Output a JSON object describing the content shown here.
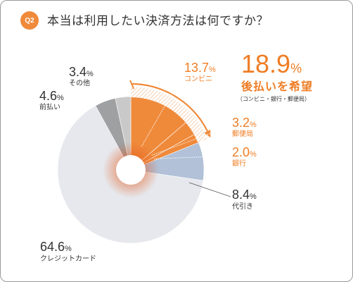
{
  "header": {
    "badge": "Q2",
    "question": "本当は利用したい決済方法は何ですか？"
  },
  "colors": {
    "accent": "#ef8a3b",
    "accent_text": "#ef7d24",
    "credit": "#e6e8ed",
    "cod": "#b2c1d8",
    "other": "#c9c9c9",
    "maebarai": "#9ea0a2",
    "text": "#333333"
  },
  "chart_data": {
    "type": "pie",
    "style": "donut",
    "slices": [
      {
        "label": "コンビニ",
        "value": 13.7,
        "display": "13.7",
        "unit": "%"
      },
      {
        "label": "郵便局",
        "value": 3.2,
        "display": "3.2",
        "unit": "%"
      },
      {
        "label": "銀行",
        "value": 2.0,
        "display": "2.0",
        "unit": "%"
      },
      {
        "label": "代引き",
        "value": 8.4,
        "display": "8.4",
        "unit": "%"
      },
      {
        "label": "クレジットカード",
        "value": 64.6,
        "display": "64.6",
        "unit": "%"
      },
      {
        "label": "前払い",
        "value": 4.6,
        "display": "4.6",
        "unit": "%"
      },
      {
        "label": "その他",
        "value": 3.4,
        "display": "3.4",
        "unit": "%"
      }
    ],
    "annotation": {
      "value": "18.9",
      "unit": "%",
      "title": "後払いを希望",
      "detail": "（コンビニ・銀行・郵便局）"
    }
  }
}
